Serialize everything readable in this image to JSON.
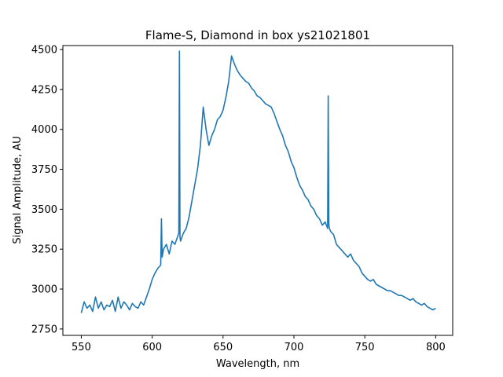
{
  "chart_data": {
    "type": "line",
    "title": "Flame-S, Diamond in box ys21021801",
    "xlabel": "Wavelength, nm",
    "ylabel": "Signal Amplitude, AU",
    "xlim": [
      537,
      812
    ],
    "ylim": [
      2710,
      4525
    ],
    "xticks": [
      550,
      600,
      650,
      700,
      750,
      800
    ],
    "yticks": [
      2750,
      3000,
      3250,
      3500,
      3750,
      4000,
      4250,
      4500
    ],
    "grid": false,
    "line_color": "#1f77b4",
    "series": [
      {
        "x": [
          550,
          552,
          554,
          556,
          558,
          560,
          562,
          564,
          566,
          568,
          570,
          572,
          574,
          576,
          578,
          580,
          582,
          584,
          586,
          588,
          590,
          592,
          594,
          596,
          598,
          600,
          602,
          604,
          606,
          606.5,
          607,
          608,
          610,
          612,
          614,
          616,
          618,
          618.8,
          619.2,
          619.6,
          620,
          622,
          624,
          626,
          628,
          630,
          632,
          634,
          636,
          638,
          640,
          642,
          644,
          646,
          648,
          650,
          652,
          654,
          656,
          658,
          660,
          662,
          664,
          666,
          668,
          670,
          672,
          674,
          676,
          678,
          680,
          682,
          684,
          686,
          688,
          690,
          692,
          694,
          696,
          698,
          700,
          702,
          704,
          706,
          708,
          710,
          712,
          714,
          716,
          718,
          720,
          722,
          723.8,
          724.2,
          724.6,
          725,
          726,
          728,
          730,
          732,
          734,
          736,
          738,
          740,
          742,
          744,
          746,
          748,
          750,
          752,
          754,
          756,
          758,
          760,
          762,
          764,
          766,
          768,
          770,
          772,
          774,
          776,
          778,
          780,
          782,
          784,
          786,
          788,
          790,
          792,
          794,
          796,
          798,
          800
        ],
        "y": [
          2850,
          2920,
          2880,
          2900,
          2860,
          2950,
          2880,
          2920,
          2870,
          2900,
          2890,
          2930,
          2860,
          2950,
          2880,
          2920,
          2900,
          2870,
          2910,
          2890,
          2880,
          2920,
          2900,
          2950,
          3000,
          3060,
          3100,
          3130,
          3150,
          3440,
          3200,
          3250,
          3280,
          3220,
          3300,
          3280,
          3330,
          3350,
          4490,
          3330,
          3300,
          3350,
          3380,
          3450,
          3550,
          3650,
          3750,
          3900,
          4140,
          4000,
          3900,
          3960,
          4000,
          4060,
          4080,
          4120,
          4200,
          4300,
          4460,
          4410,
          4370,
          4340,
          4320,
          4300,
          4290,
          4260,
          4240,
          4210,
          4200,
          4180,
          4160,
          4150,
          4140,
          4100,
          4050,
          4000,
          3960,
          3900,
          3860,
          3800,
          3760,
          3700,
          3650,
          3620,
          3580,
          3560,
          3520,
          3500,
          3460,
          3440,
          3400,
          3420,
          3380,
          4210,
          3410,
          3380,
          3360,
          3340,
          3280,
          3260,
          3240,
          3220,
          3200,
          3220,
          3180,
          3160,
          3140,
          3100,
          3080,
          3060,
          3050,
          3060,
          3030,
          3020,
          3010,
          3000,
          2990,
          2990,
          2980,
          2970,
          2960,
          2960,
          2950,
          2940,
          2930,
          2940,
          2920,
          2910,
          2900,
          2910,
          2890,
          2880,
          2870,
          2880
        ]
      }
    ]
  }
}
